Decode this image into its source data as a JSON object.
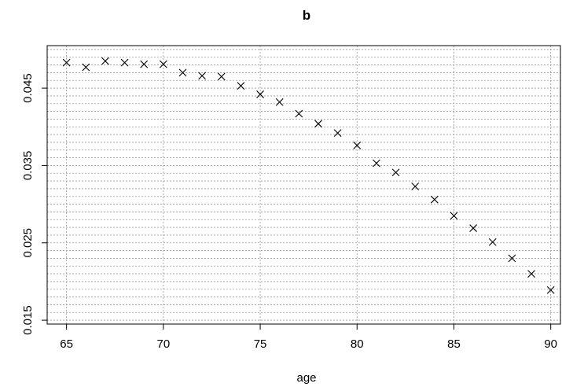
{
  "chart_data": {
    "type": "scatter",
    "title": "b",
    "xlabel": "age",
    "ylabel": "",
    "xlim": [
      64,
      90.5
    ],
    "ylim": [
      0.0145,
      0.0505
    ],
    "xticks": [
      65,
      70,
      75,
      80,
      85,
      90
    ],
    "xtick_labels": [
      "65",
      "70",
      "75",
      "80",
      "85",
      "90"
    ],
    "yticks": [
      0.015,
      0.025,
      0.035,
      0.045
    ],
    "ytick_labels": [
      "0.015",
      "0.025",
      "0.035",
      "0.045"
    ],
    "grid": true,
    "grid_x": [
      65,
      70,
      75,
      80,
      85,
      90
    ],
    "grid_y_step": 0.001,
    "marker": "x",
    "x": [
      65,
      66,
      67,
      68,
      69,
      70,
      71,
      72,
      73,
      74,
      75,
      76,
      77,
      78,
      79,
      80,
      81,
      82,
      83,
      84,
      85,
      86,
      87,
      88,
      89,
      90
    ],
    "y": [
      0.0483,
      0.0477,
      0.0485,
      0.0483,
      0.0481,
      0.0481,
      0.047,
      0.0466,
      0.0465,
      0.0453,
      0.0442,
      0.0432,
      0.0417,
      0.0404,
      0.0392,
      0.0376,
      0.0353,
      0.0341,
      0.0323,
      0.0306,
      0.0285,
      0.0269,
      0.0251,
      0.023,
      0.021,
      0.0189
    ]
  }
}
